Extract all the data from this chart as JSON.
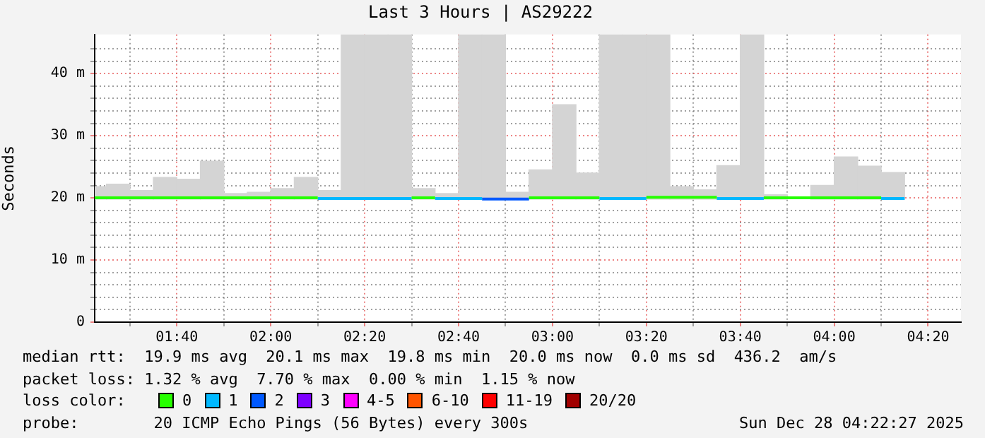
{
  "chart_data": {
    "type": "step",
    "title": "Last 3 Hours | AS29222",
    "ylabel": "Seconds",
    "legend_title": "loss color:",
    "legend": "bottom",
    "grid": true,
    "annotations": [
      "median rtt:  19.9 ms avg  20.1 ms max  19.8 ms min  20.0 ms now  0.0 ms sd  436.2  am/s",
      "packet loss: 1.32 % avg  7.70 % max  0.00 % min  1.15 % now",
      "probe:        20 ICMP Echo Pings (56 Bytes) every 300s",
      "Sun Dec 28 04:22:27 2025"
    ],
    "xlim": [
      1.375,
      4.45
    ],
    "ylim": [
      0,
      46.3
    ],
    "xticks": [
      {
        "value": 1.5,
        "label": null
      },
      {
        "value": 1.6667,
        "label": "01:40"
      },
      {
        "value": 1.8333,
        "label": null
      },
      {
        "value": 2,
        "label": "02:00"
      },
      {
        "value": 2.1667,
        "label": null
      },
      {
        "value": 2.3333,
        "label": "02:20"
      },
      {
        "value": 2.5,
        "label": null
      },
      {
        "value": 2.6667,
        "label": "02:40"
      },
      {
        "value": 2.8333,
        "label": null
      },
      {
        "value": 3,
        "label": "03:00"
      },
      {
        "value": 3.1667,
        "label": null
      },
      {
        "value": 3.3333,
        "label": "03:20"
      },
      {
        "value": 3.5,
        "label": null
      },
      {
        "value": 3.6667,
        "label": "03:40"
      },
      {
        "value": 3.8333,
        "label": null
      },
      {
        "value": 4,
        "label": "04:00"
      },
      {
        "value": 4.1667,
        "label": null
      },
      {
        "value": 4.3333,
        "label": "04:20"
      }
    ],
    "yticks": [
      0,
      {
        "value": 2,
        "label": null
      },
      {
        "value": 4,
        "label": null
      },
      {
        "value": 6,
        "label": null
      },
      {
        "value": 8,
        "label": null
      },
      {
        "value": 10,
        "label": "10 m"
      },
      {
        "value": 12,
        "label": null
      },
      {
        "value": 14,
        "label": null
      },
      {
        "value": 16,
        "label": null
      },
      {
        "value": 18,
        "label": null
      },
      {
        "value": 20,
        "label": "20 m"
      },
      {
        "value": 22,
        "label": null
      },
      {
        "value": 24,
        "label": null
      },
      {
        "value": 26,
        "label": null
      },
      {
        "value": 28,
        "label": null
      },
      {
        "value": 30,
        "label": "30 m"
      },
      {
        "value": 32,
        "label": null
      },
      {
        "value": 34,
        "label": null
      },
      {
        "value": 36,
        "label": null
      },
      {
        "value": 38,
        "label": null
      },
      {
        "value": 40,
        "label": "40 m"
      },
      {
        "value": 42,
        "label": null
      },
      {
        "value": 44,
        "label": null
      }
    ],
    "series": [
      {
        "type": "bar",
        "color": "#d4d4d4",
        "x": [
          1.375,
          1.4583,
          1.5417,
          1.625,
          1.7083,
          1.7917,
          1.875,
          1.9583,
          2.0417,
          2.125,
          2.2083,
          2.2917,
          2.375,
          2.4583,
          2.5417,
          2.625,
          2.7083,
          2.7917,
          2.875,
          2.9583,
          3.0417,
          3.125,
          3.2083,
          3.2917,
          3.375,
          3.4583,
          3.5417,
          3.625,
          3.7083,
          3.7917,
          3.875,
          3.9583,
          4.0417,
          4.125,
          4.2083
        ],
        "base": [
          19.8,
          19.8,
          19.8,
          19.8,
          19.8,
          19.8,
          19.8,
          19.8,
          19.8,
          19.8,
          19.8,
          19.8,
          19.8,
          19.8,
          19.8,
          19.8,
          19.8,
          19.8,
          19.8,
          19.8,
          19.8,
          19.8,
          19.8,
          19.8,
          19.8,
          19.8,
          19.8,
          19.8,
          19.8,
          19.8,
          null,
          19.8,
          19.8,
          19.8,
          19.8
        ],
        "values": [
          2.0,
          2.4,
          1.4,
          3.5,
          3.2,
          6.1,
          0.9,
          1.1,
          1.7,
          3.5,
          1.4,
          26.5,
          26.5,
          26.5,
          1.7,
          0.9,
          26.5,
          26.5,
          1.1,
          4.7,
          15.2,
          4.2,
          26.5,
          26.5,
          26.5,
          2.0,
          1.5,
          5.4,
          26.5,
          0.7,
          null,
          2.2,
          6.8,
          5.3,
          4.3
        ]
      },
      {
        "name": "0",
        "color": "#26ff00",
        "x": [
          1.375,
          2.1667,
          2.5,
          2.5833,
          2.9167,
          3.1667,
          3.3333,
          3.5833,
          3.75,
          4.1667
        ],
        "values": [
          20.0,
          20.0,
          20.0,
          20.0,
          20.0,
          20.0,
          20.1,
          20.1,
          20.0,
          20.0
        ]
      },
      {
        "name": "1",
        "color": "#00b8ff",
        "x": [
          2.1667,
          2.5,
          2.5833,
          2.75,
          3.1667,
          3.3333,
          3.5833,
          3.75,
          4.1667,
          4.25
        ],
        "values": [
          19.9,
          19.9,
          19.9,
          19.9,
          19.9,
          19.9,
          19.9,
          19.9,
          19.9,
          19.9
        ]
      },
      {
        "name": "2",
        "color": "#0059ff",
        "x": [
          2.75,
          2.9167
        ],
        "values": [
          19.8,
          19.8
        ]
      },
      {
        "name": "3",
        "color": "#7e00ff"
      },
      {
        "name": "4-5",
        "color": "#ff00ff"
      },
      {
        "name": "6-10",
        "color": "#ff5500"
      },
      {
        "name": "11-19",
        "color": "#ff0000"
      },
      {
        "name": "20/20",
        "color": "#a10000"
      }
    ]
  }
}
